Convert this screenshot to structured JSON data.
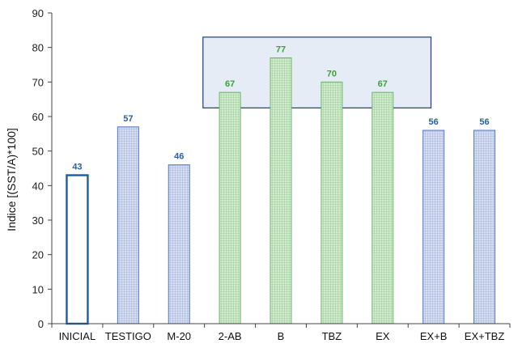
{
  "chart_data": {
    "type": "bar",
    "title": "",
    "xlabel": "",
    "ylabel": "Indice [(SST/A)*100]",
    "ylim": [
      0,
      90
    ],
    "yticks": [
      0,
      10,
      20,
      30,
      40,
      50,
      60,
      70,
      80,
      90
    ],
    "grid": false,
    "categories": [
      "INICIAL",
      "TESTIGO",
      "M-20",
      "2-AB",
      "B",
      "TBZ",
      "EX",
      "EX+B",
      "EX+TBZ"
    ],
    "values": [
      43,
      57,
      46,
      67,
      77,
      70,
      67,
      56,
      56
    ],
    "data_labels": [
      "43",
      "57",
      "46",
      "67",
      "77",
      "70",
      "67",
      "56",
      "56"
    ],
    "bar_colors": [
      "outline-blue",
      "blue",
      "blue",
      "green",
      "green",
      "green",
      "green",
      "blue",
      "blue"
    ],
    "highlight_box": {
      "categories": [
        "2-AB",
        "B",
        "TBZ",
        "EX"
      ],
      "ylim": [
        62.5,
        83
      ]
    }
  },
  "colors": {
    "blue_edge": "#4f74c4",
    "blue_fill": "#d6deef",
    "green_edge": "#6ab868",
    "green_fill": "#d4ead0",
    "outline_edge": "#1f5aa6",
    "blue_label": "#2960ad",
    "green_label": "#3aa23a",
    "box_fill": "#e6ecf6",
    "box_edge": "#1f3d7a",
    "axis": "#444444"
  }
}
